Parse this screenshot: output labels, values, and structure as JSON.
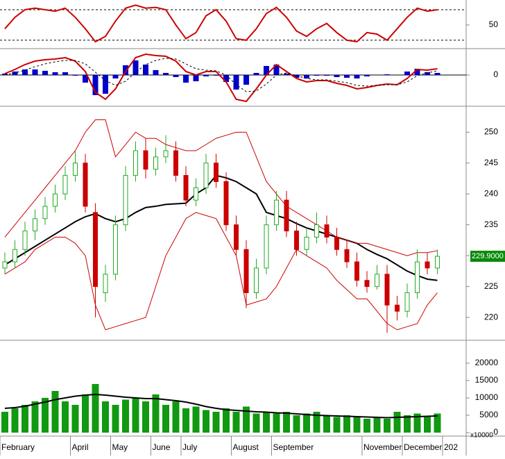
{
  "chart_data": [
    {
      "type": "oscillator",
      "name_panel": "rsi",
      "series": [
        {
          "name": "RSI",
          "color": "#cc0000",
          "values": [
            45,
            60,
            70,
            72,
            70,
            68,
            72,
            60,
            45,
            28,
            35,
            55,
            72,
            76,
            72,
            73,
            70,
            50,
            32,
            40,
            62,
            70,
            55,
            32,
            30,
            45,
            65,
            73,
            60,
            42,
            35,
            45,
            52,
            40,
            30,
            28,
            40,
            38,
            30,
            45,
            60,
            72,
            68,
            70,
            null
          ]
        }
      ],
      "reference_lines": [
        30,
        70
      ],
      "ylim": [
        19,
        82.7
      ],
      "yticks": [
        50
      ]
    },
    {
      "type": "macd",
      "series": [
        {
          "name": "MACD",
          "color": "#cc0000",
          "values": [
            0.2,
            0.8,
            1.5,
            2,
            2.2,
            2.3,
            2.5,
            2,
            0.5,
            -2.5,
            -3.5,
            -2,
            0.5,
            2.5,
            3,
            2.8,
            2.7,
            2,
            0.5,
            0,
            0.5,
            0.5,
            -1,
            -3.5,
            -3.8,
            -2,
            0,
            1.5,
            0.5,
            -0.5,
            -1,
            -0.8,
            -0.8,
            -1.2,
            -1.5,
            -2,
            -1.8,
            -1.5,
            -1.3,
            -1.4,
            -0.5,
            0.8,
            0.7,
            0.9,
            null
          ]
        },
        {
          "name": "Signal",
          "color": "#000000",
          "values": [
            0,
            0.3,
            0.7,
            1.2,
            1.6,
            1.9,
            2.1,
            2.1,
            1.6,
            0.4,
            -0.8,
            -1.5,
            -0.9,
            0.4,
            1.5,
            2.1,
            2.4,
            2.3,
            1.6,
            0.9,
            0.7,
            0.6,
            0,
            -1.4,
            -2.4,
            -2.3,
            -1.3,
            0,
            0.3,
            -0.1,
            -0.5,
            -0.7,
            -0.7,
            -0.9,
            -1.1,
            -1.5,
            -1.6,
            -1.5,
            -1.4,
            -1.4,
            -1,
            -0.1,
            0.3,
            0.6,
            null
          ]
        },
        {
          "name": "Histogram",
          "color": "#0000cc",
          "values": [
            0.2,
            0.5,
            0.8,
            0.8,
            0.6,
            0.4,
            0.4,
            -0.1,
            -1.1,
            -2.9,
            -2.7,
            -0.5,
            1.4,
            2.1,
            1.5,
            0.7,
            0.3,
            -0.3,
            -1.1,
            -0.9,
            -0.2,
            -0.1,
            -1,
            -2.1,
            -1.4,
            0.3,
            1.3,
            1.5,
            0.2,
            -0.4,
            -0.5,
            -0.1,
            -0.1,
            -0.3,
            -0.4,
            -0.5,
            -0.2,
            0,
            0.1,
            0,
            0.5,
            0.9,
            0.4,
            0.3,
            null
          ]
        }
      ],
      "ylim": [
        -4.5,
        3.8
      ],
      "yticks": [
        0
      ]
    },
    {
      "type": "candlestick",
      "open": [
        228,
        229,
        231,
        234,
        236,
        238,
        240,
        243,
        245,
        237,
        224,
        227,
        235,
        243,
        247,
        244,
        246,
        247,
        243,
        239,
        241,
        245,
        242,
        235,
        231,
        224,
        228,
        235,
        239,
        234,
        231,
        233,
        235,
        233,
        231,
        229,
        226,
        225,
        227,
        222,
        221,
        224,
        229,
        228,
        null
      ],
      "high": [
        230.5,
        232.5,
        235.5,
        237.5,
        239.5,
        241.5,
        244.5,
        247,
        246.5,
        238.5,
        228.5,
        236.5,
        244.5,
        248.5,
        249,
        247.5,
        249.5,
        248.5,
        244.5,
        242.5,
        246.5,
        246.5,
        243.5,
        236.5,
        232.5,
        229.5,
        236.5,
        240.5,
        240.5,
        235.5,
        234.5,
        237,
        236.5,
        234.5,
        232.5,
        230.5,
        227.5,
        228.5,
        228.5,
        223.5,
        225.5,
        231,
        230.5,
        231,
        null
      ],
      "low": [
        227,
        228,
        230,
        232.5,
        235,
        237,
        239,
        242,
        237,
        220,
        222.5,
        226,
        234,
        242,
        242.5,
        243,
        245,
        242,
        238,
        238,
        240,
        241,
        234,
        230,
        221.5,
        223,
        227,
        234,
        233,
        230,
        230,
        232,
        232,
        230,
        228,
        225,
        224,
        224.5,
        217.5,
        219.5,
        220,
        223,
        227,
        227,
        null
      ],
      "close": [
        229,
        231,
        234,
        236,
        238,
        240,
        243,
        245,
        238,
        225,
        227,
        235,
        243,
        247,
        244,
        246,
        247,
        243,
        239,
        241,
        245,
        242,
        235,
        231,
        224,
        228,
        235,
        239,
        234,
        231,
        233,
        235,
        233,
        231,
        229,
        226,
        225,
        227,
        222,
        221,
        224,
        229,
        228,
        229.9,
        null
      ],
      "up_color": "#22aa22",
      "down_color": "#cc0000",
      "series": [
        {
          "name": "MA",
          "color": "#000000",
          "values": [
            228.5,
            229.5,
            230.5,
            231.5,
            232.5,
            233.5,
            234.5,
            235.5,
            236.3,
            236.8,
            236,
            235.5,
            236,
            237,
            237.8,
            238,
            238.3,
            238.4,
            238.5,
            240,
            241,
            243,
            242.6,
            242,
            241,
            240,
            237,
            236.5,
            236,
            235.2,
            234.5,
            234,
            233.5,
            233,
            232.5,
            232,
            231,
            230.2,
            229.5,
            228.5,
            227.5,
            226.8,
            226.2,
            226,
            null
          ]
        },
        {
          "name": "Upper",
          "color": "#cc0000",
          "values": [
            233,
            235,
            237,
            239,
            241,
            243,
            245,
            247,
            250,
            252,
            252,
            246,
            248,
            250,
            249,
            249,
            248,
            247.5,
            247,
            247,
            248,
            249,
            249.5,
            250,
            250,
            246,
            242,
            240,
            238,
            237,
            236,
            235,
            234,
            233,
            232.5,
            232,
            232,
            231.5,
            231,
            230.5,
            230,
            230.5,
            230.5,
            230.8,
            null
          ]
        },
        {
          "name": "Lower",
          "color": "#cc0000",
          "values": [
            227,
            228,
            229,
            231,
            232,
            233,
            233,
            232,
            230,
            222,
            218,
            218.5,
            219,
            219.5,
            220,
            225,
            230,
            233,
            236,
            237,
            236.5,
            236,
            233,
            230,
            222,
            222.5,
            223,
            225,
            228,
            231,
            230,
            229,
            228,
            226,
            224.5,
            223,
            223,
            221,
            219,
            218,
            218.5,
            219,
            222,
            224,
            null
          ]
        }
      ],
      "last_label": {
        "value": 229.9,
        "label": "229.9000"
      },
      "ylim": [
        216.3,
        254.2
      ],
      "yticks": [
        220,
        225,
        230,
        235,
        240,
        245,
        250
      ]
    },
    {
      "type": "bar",
      "categories": [
        "February",
        null,
        null,
        null,
        null,
        null,
        null,
        "April",
        null,
        null,
        null,
        "May",
        null,
        null,
        null,
        "June",
        null,
        null,
        "July",
        null,
        null,
        null,
        null,
        "August",
        null,
        null,
        null,
        "September",
        null,
        null,
        null,
        null,
        null,
        null,
        null,
        null,
        "November",
        null,
        null,
        null,
        "December",
        null,
        null,
        null,
        "202"
      ],
      "values": [
        6000,
        7000,
        8000,
        9000,
        10000,
        12000,
        9000,
        8000,
        11000,
        14000,
        9000,
        8000,
        9500,
        10000,
        9000,
        11000,
        8000,
        9000,
        7000,
        7500,
        6500,
        6000,
        7000,
        6000,
        7500,
        5500,
        6000,
        5500,
        6000,
        5000,
        5500,
        6000,
        5000,
        4500,
        5000,
        4500,
        4000,
        4500,
        4000,
        6000,
        5000,
        5500,
        4500,
        5500,
        null
      ],
      "color": "#119911",
      "series": [
        {
          "name": "Volume MA",
          "color": "#000000",
          "values": [
            7000,
            7200,
            7600,
            8200,
            8800,
            9500,
            10000,
            10500,
            10800,
            11000,
            10800,
            10500,
            10200,
            10000,
            9800,
            9800,
            9500,
            9200,
            8800,
            8200,
            7500,
            7000,
            6600,
            6400,
            6200,
            6000,
            5900,
            5700,
            5600,
            5400,
            5200,
            5000,
            4900,
            4800,
            4700,
            4600,
            4500,
            4400,
            4300,
            4400,
            4500,
            4600,
            4700,
            4800,
            null
          ]
        }
      ],
      "unit_label": "x10000",
      "ylim": [
        -1000,
        26600
      ],
      "yticks": [
        0,
        5000,
        10000,
        15000,
        20000
      ]
    }
  ]
}
